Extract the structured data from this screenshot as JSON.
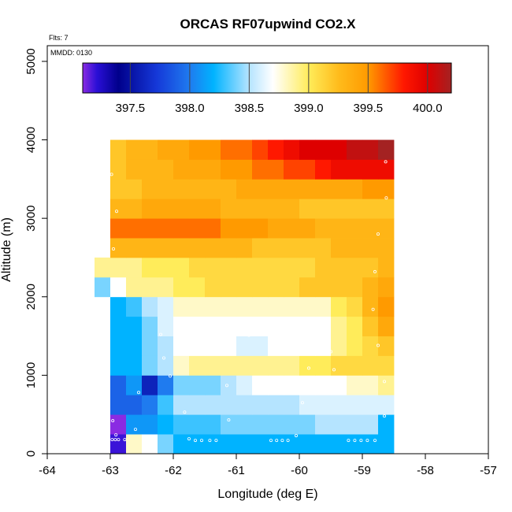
{
  "chart_data": {
    "type": "heatmap",
    "title": "ORCAS RF07upwind CO2.X",
    "xlabel": "Longitude (deg E)",
    "ylabel": "Altitude (m)",
    "note_flights": "Flts: 7",
    "note_date": "MMDD: 0130",
    "xlim": [
      -64,
      -57
    ],
    "ylim": [
      0,
      5200
    ],
    "x_ticks": [
      -64,
      -63,
      -62,
      -61,
      -60,
      -59,
      -58,
      -57
    ],
    "x_tick_labels": [
      "-64",
      "-63",
      "-62",
      "-61",
      "-60",
      "-59",
      "-58",
      "-57"
    ],
    "y_ticks": [
      0,
      1000,
      2000,
      3000,
      4000,
      5000
    ],
    "y_tick_labels": [
      "0",
      "1000",
      "2000",
      "3000",
      "4000",
      "5000"
    ],
    "colorbar": {
      "range": [
        397.1,
        400.2
      ],
      "ticks": [
        397.5,
        398.0,
        398.5,
        399.0,
        399.5,
        400.0
      ],
      "tick_labels": [
        "397.5",
        "398.0",
        "398.5",
        "399.0",
        "399.5",
        "400.0"
      ],
      "colors": [
        {
          "v": 397.1,
          "c": "#8a2be2"
        },
        {
          "v": 397.22,
          "c": "#2a0fd6"
        },
        {
          "v": 397.4,
          "c": "#00008b"
        },
        {
          "v": 397.72,
          "c": "#1538d8"
        },
        {
          "v": 398.0,
          "c": "#1f7bef"
        },
        {
          "v": 398.2,
          "c": "#00b3ff"
        },
        {
          "v": 398.5,
          "c": "#b5e4ff"
        },
        {
          "v": 398.7,
          "c": "#ffffff"
        },
        {
          "v": 399.0,
          "c": "#ffec5a"
        },
        {
          "v": 399.25,
          "c": "#ffbc1c"
        },
        {
          "v": 399.5,
          "c": "#ff9a00"
        },
        {
          "v": 399.8,
          "c": "#ff1800"
        },
        {
          "v": 400.0,
          "c": "#de0000"
        },
        {
          "v": 400.2,
          "c": "#a42222"
        }
      ]
    },
    "cell_width_deg": 0.25,
    "cell_height_m": 250,
    "rows": [
      {
        "alt": 0,
        "lon_start": -63.0,
        "values": [
          397.2,
          398.8,
          398.7,
          398.4,
          398.2,
          398.2,
          398.2,
          398.2,
          398.2,
          398.2,
          398.2,
          398.2,
          398.2,
          398.2,
          398.2,
          398.2,
          398.2,
          398.2
        ]
      },
      {
        "alt": 250,
        "lon_start": -63.0,
        "values": [
          397.1,
          398.1,
          398.1,
          398.2,
          398.3,
          398.3,
          398.3,
          398.4,
          398.4,
          398.4,
          398.4,
          398.4,
          398.4,
          398.5,
          398.5,
          398.5,
          398.5,
          398.2
        ]
      },
      {
        "alt": 500,
        "lon_start": -63.0,
        "values": [
          397.9,
          397.9,
          398.0,
          398.3,
          398.5,
          398.5,
          398.5,
          398.5,
          398.5,
          398.5,
          398.5,
          398.5,
          398.6,
          398.6,
          398.6,
          398.6,
          398.6,
          398.6
        ]
      },
      {
        "alt": 750,
        "lon_start": -63.0,
        "values": [
          397.9,
          398.1,
          397.6,
          398.0,
          398.4,
          398.4,
          398.4,
          398.5,
          398.6,
          398.7,
          398.7,
          398.7,
          398.7,
          398.7,
          398.7,
          398.8,
          398.8,
          398.9
        ]
      },
      {
        "alt": 1000,
        "lon_start": -63.0,
        "values": [
          398.2,
          398.2,
          398.4,
          398.5,
          398.8,
          398.9,
          398.9,
          398.9,
          398.9,
          398.9,
          398.9,
          398.9,
          399.0,
          399.0,
          399.1,
          399.1,
          399.1,
          399.1
        ]
      },
      {
        "alt": 1250,
        "lon_start": -63.0,
        "values": [
          398.2,
          398.2,
          398.4,
          398.5,
          398.7,
          398.7,
          398.7,
          398.7,
          398.6,
          398.6,
          398.7,
          398.7,
          398.7,
          398.7,
          398.9,
          399.0,
          399.1,
          399.2
        ]
      },
      {
        "alt": 1500,
        "lon_start": -63.0,
        "values": [
          398.2,
          398.2,
          398.4,
          398.6,
          398.7,
          398.7,
          398.7,
          398.7,
          398.7,
          398.7,
          398.7,
          398.7,
          398.7,
          398.7,
          398.9,
          399.0,
          399.2,
          399.4
        ]
      },
      {
        "alt": 1750,
        "lon_start": -63.0,
        "values": [
          398.2,
          398.3,
          398.5,
          398.6,
          398.8,
          398.8,
          398.8,
          398.8,
          398.8,
          398.8,
          398.8,
          398.8,
          398.8,
          398.8,
          399.0,
          399.1,
          399.3,
          399.5
        ]
      },
      {
        "alt": 2000,
        "lon_start": -63.25,
        "values": [
          398.4,
          398.7,
          398.9,
          398.9,
          398.9,
          399.0,
          399.0,
          399.1,
          399.1,
          399.1,
          399.1,
          399.1,
          399.1,
          399.2,
          399.2,
          399.2,
          399.2,
          399.3,
          399.4
        ]
      },
      {
        "alt": 2250,
        "lon_start": -63.25,
        "values": [
          398.9,
          398.9,
          398.9,
          399.0,
          399.0,
          399.0,
          399.1,
          399.1,
          399.1,
          399.1,
          399.1,
          399.1,
          399.1,
          399.1,
          399.2,
          399.2,
          399.2,
          399.2,
          399.3
        ]
      },
      {
        "alt": 2500,
        "lon_start": -63.0,
        "values": [
          399.3,
          399.3,
          399.3,
          399.3,
          399.3,
          399.3,
          399.3,
          399.3,
          399.3,
          399.2,
          399.2,
          399.2,
          399.2,
          399.2,
          399.3,
          399.3,
          399.3,
          399.3
        ]
      },
      {
        "alt": 2750,
        "lon_start": -63.0,
        "values": [
          399.6,
          399.6,
          399.6,
          399.6,
          399.6,
          399.6,
          399.6,
          399.5,
          399.5,
          399.5,
          399.4,
          399.4,
          399.4,
          399.3,
          399.3,
          399.3,
          399.3,
          399.3
        ]
      },
      {
        "alt": 3000,
        "lon_start": -63.0,
        "values": [
          399.3,
          399.3,
          399.4,
          399.4,
          399.4,
          399.4,
          399.4,
          399.3,
          399.3,
          399.3,
          399.3,
          399.3,
          399.2,
          399.2,
          399.2,
          399.2,
          399.2,
          399.2
        ]
      },
      {
        "alt": 3250,
        "lon_start": -63.0,
        "values": [
          399.2,
          399.2,
          399.3,
          399.3,
          399.3,
          399.3,
          399.3,
          399.3,
          399.4,
          399.4,
          399.4,
          399.4,
          399.4,
          399.4,
          399.4,
          399.4,
          399.5,
          399.5
        ]
      },
      {
        "alt": 3500,
        "lon_start": -63.0,
        "values": [
          399.2,
          399.3,
          399.3,
          399.3,
          399.4,
          399.4,
          399.4,
          399.5,
          399.5,
          399.6,
          399.6,
          399.7,
          399.7,
          399.8,
          399.9,
          399.9,
          399.9,
          399.9
        ]
      },
      {
        "alt": 3750,
        "lon_start": -63.0,
        "values": [
          399.2,
          399.3,
          399.3,
          399.4,
          399.4,
          399.5,
          399.5,
          399.6,
          399.6,
          399.7,
          399.8,
          399.9,
          400.0,
          400.0,
          400.0,
          400.1,
          400.1,
          400.2
        ]
      }
    ],
    "points": [
      {
        "lon": -62.97,
        "alt": 180
      },
      {
        "lon": -62.92,
        "alt": 180
      },
      {
        "lon": -62.87,
        "alt": 180
      },
      {
        "lon": -62.77,
        "alt": 180
      },
      {
        "lon": -62.91,
        "alt": 240
      },
      {
        "lon": -62.96,
        "alt": 420
      },
      {
        "lon": -62.6,
        "alt": 310
      },
      {
        "lon": -62.55,
        "alt": 780
      },
      {
        "lon": -61.75,
        "alt": 190
      },
      {
        "lon": -61.65,
        "alt": 170
      },
      {
        "lon": -61.55,
        "alt": 170
      },
      {
        "lon": -61.42,
        "alt": 170
      },
      {
        "lon": -61.32,
        "alt": 170
      },
      {
        "lon": -60.45,
        "alt": 170
      },
      {
        "lon": -60.36,
        "alt": 170
      },
      {
        "lon": -60.27,
        "alt": 170
      },
      {
        "lon": -60.18,
        "alt": 170
      },
      {
        "lon": -60.05,
        "alt": 230
      },
      {
        "lon": -59.22,
        "alt": 170
      },
      {
        "lon": -59.12,
        "alt": 170
      },
      {
        "lon": -59.02,
        "alt": 170
      },
      {
        "lon": -58.92,
        "alt": 170
      },
      {
        "lon": -58.8,
        "alt": 170
      },
      {
        "lon": -58.65,
        "alt": 480
      },
      {
        "lon": -61.82,
        "alt": 530
      },
      {
        "lon": -61.12,
        "alt": 430
      },
      {
        "lon": -59.95,
        "alt": 650
      },
      {
        "lon": -61.15,
        "alt": 870
      },
      {
        "lon": -62.05,
        "alt": 990
      },
      {
        "lon": -62.15,
        "alt": 1220
      },
      {
        "lon": -62.2,
        "alt": 1520
      },
      {
        "lon": -61.2,
        "alt": 1580
      },
      {
        "lon": -60.8,
        "alt": 1510
      },
      {
        "lon": -60.3,
        "alt": 1360
      },
      {
        "lon": -59.7,
        "alt": 1490
      },
      {
        "lon": -59.5,
        "alt": 1300
      },
      {
        "lon": -59.85,
        "alt": 1090
      },
      {
        "lon": -59.45,
        "alt": 1070
      },
      {
        "lon": -58.75,
        "alt": 1380
      },
      {
        "lon": -58.65,
        "alt": 920
      },
      {
        "lon": -63.17,
        "alt": 1680
      },
      {
        "lon": -63.22,
        "alt": 1230
      },
      {
        "lon": -63.12,
        "alt": 780
      },
      {
        "lon": -58.83,
        "alt": 1840
      },
      {
        "lon": -58.8,
        "alt": 2320
      },
      {
        "lon": -58.75,
        "alt": 2800
      },
      {
        "lon": -62.95,
        "alt": 2610
      },
      {
        "lon": -62.9,
        "alt": 3090
      },
      {
        "lon": -62.98,
        "alt": 3560
      },
      {
        "lon": -58.62,
        "alt": 3260
      },
      {
        "lon": -58.63,
        "alt": 3720
      }
    ]
  }
}
